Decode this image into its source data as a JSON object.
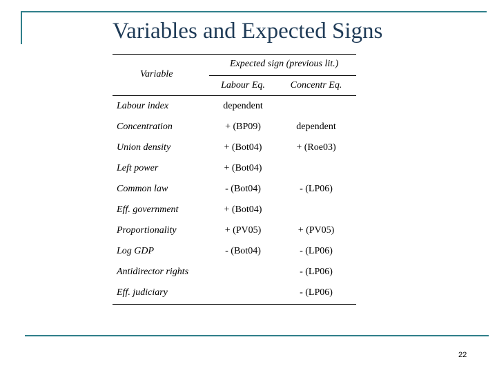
{
  "slide": {
    "title": "Variables and Expected Signs",
    "page_number": "22",
    "accent_color": "#2f7f8a",
    "title_color": "#1f3b57"
  },
  "table": {
    "variable_header": "Variable",
    "group_header": "Expected sign (previous lit.)",
    "col_labour": "Labour Eq.",
    "col_concentr": "Concentr Eq.",
    "rows": [
      {
        "variable": "Labour index",
        "labour": "dependent",
        "concentr": ""
      },
      {
        "variable": "Concentration",
        "labour": "+ (BP09)",
        "concentr": "dependent"
      },
      {
        "variable": "Union density",
        "labour": "+ (Bot04)",
        "concentr": "+ (Roe03)"
      },
      {
        "variable": "Left power",
        "labour": "+ (Bot04)",
        "concentr": ""
      },
      {
        "variable": "Common law",
        "labour": "- (Bot04)",
        "concentr": "- (LP06)"
      },
      {
        "variable": "Eff. government",
        "labour": "+ (Bot04)",
        "concentr": ""
      },
      {
        "variable": "Proportionality",
        "labour": "+ (PV05)",
        "concentr": "+ (PV05)"
      },
      {
        "variable": "Log GDP",
        "labour": "- (Bot04)",
        "concentr": "- (LP06)"
      },
      {
        "variable": "Antidirector rights",
        "labour": "",
        "concentr": "- (LP06)"
      },
      {
        "variable": "Eff. judiciary",
        "labour": "",
        "concentr": "- (LP06)"
      }
    ]
  }
}
